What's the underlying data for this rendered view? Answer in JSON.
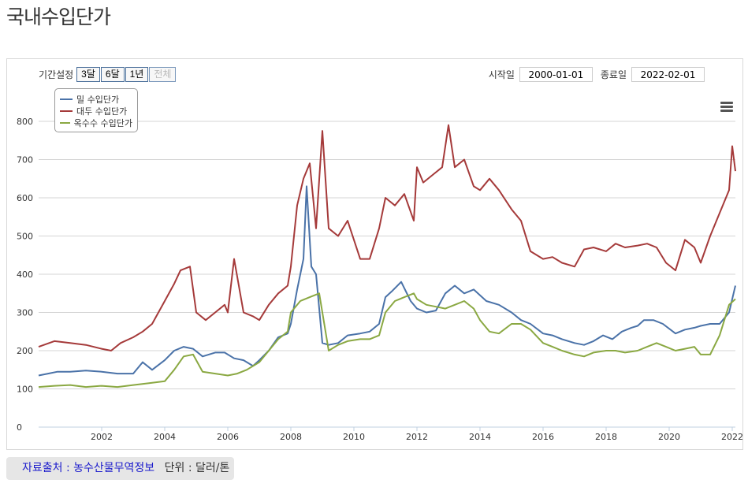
{
  "page": {
    "title": "국내수입단가"
  },
  "controls": {
    "period_label": "기간설정",
    "period_buttons": [
      "3달",
      "6달",
      "1년",
      "전체"
    ],
    "start_label": "시작일",
    "start_value": "2000-01-01",
    "end_label": "종료일",
    "end_value": "2022-02-01"
  },
  "footer": {
    "source": "자료출처 : 농수산물무역정보",
    "unit": "단위 : 달러/톤"
  },
  "chart_data": {
    "type": "line",
    "x_unit": "year",
    "xlim": [
      2000.0,
      2022.1
    ],
    "ylim": [
      0,
      800
    ],
    "y_ticks": [
      0,
      100,
      200,
      300,
      400,
      500,
      600,
      700,
      800
    ],
    "x_ticks": [
      2002,
      2004,
      2006,
      2008,
      2010,
      2012,
      2014,
      2016,
      2018,
      2020,
      2022
    ],
    "grid": true,
    "legend_position": "top-left",
    "series": [
      {
        "name": "밀 수입단가",
        "color": "#4a72a8",
        "x": [
          2000.0,
          2000.3,
          2000.6,
          2001.0,
          2001.5,
          2002.0,
          2002.5,
          2003.0,
          2003.3,
          2003.6,
          2004.0,
          2004.3,
          2004.6,
          2004.9,
          2005.2,
          2005.6,
          2005.9,
          2006.2,
          2006.5,
          2006.8,
          2007.0,
          2007.3,
          2007.6,
          2007.9,
          2008.0,
          2008.2,
          2008.4,
          2008.5,
          2008.65,
          2008.8,
          2009.0,
          2009.2,
          2009.5,
          2009.8,
          2010.2,
          2010.5,
          2010.8,
          2011.0,
          2011.2,
          2011.5,
          2011.8,
          2012.0,
          2012.3,
          2012.6,
          2012.9,
          2013.2,
          2013.5,
          2013.8,
          2014.2,
          2014.6,
          2015.0,
          2015.3,
          2015.6,
          2016.0,
          2016.3,
          2016.6,
          2017.0,
          2017.3,
          2017.6,
          2017.9,
          2018.2,
          2018.5,
          2018.8,
          2019.0,
          2019.2,
          2019.5,
          2019.8,
          2020.2,
          2020.5,
          2020.8,
          2021.0,
          2021.3,
          2021.6,
          2021.9,
          2022.1
        ],
        "y": [
          135,
          140,
          145,
          145,
          148,
          145,
          140,
          140,
          170,
          150,
          175,
          200,
          210,
          205,
          185,
          195,
          195,
          180,
          175,
          160,
          175,
          200,
          235,
          245,
          270,
          360,
          440,
          630,
          420,
          400,
          220,
          215,
          220,
          240,
          245,
          250,
          270,
          340,
          355,
          380,
          330,
          310,
          300,
          305,
          350,
          370,
          350,
          360,
          330,
          320,
          300,
          280,
          270,
          245,
          240,
          230,
          220,
          215,
          225,
          240,
          230,
          250,
          260,
          265,
          280,
          280,
          270,
          245,
          255,
          260,
          265,
          270,
          270,
          300,
          370
        ]
      },
      {
        "name": "대두 수입단가",
        "color": "#a53a3a",
        "x": [
          2000.0,
          2000.5,
          2001.0,
          2001.5,
          2002.0,
          2002.3,
          2002.6,
          2003.0,
          2003.3,
          2003.6,
          2004.0,
          2004.3,
          2004.5,
          2004.8,
          2005.0,
          2005.3,
          2005.6,
          2005.9,
          2006.0,
          2006.2,
          2006.5,
          2006.8,
          2007.0,
          2007.3,
          2007.6,
          2007.9,
          2008.0,
          2008.2,
          2008.4,
          2008.6,
          2008.8,
          2009.0,
          2009.2,
          2009.5,
          2009.8,
          2010.2,
          2010.5,
          2010.8,
          2011.0,
          2011.3,
          2011.6,
          2011.9,
          2012.0,
          2012.2,
          2012.5,
          2012.8,
          2013.0,
          2013.2,
          2013.5,
          2013.8,
          2014.0,
          2014.3,
          2014.6,
          2015.0,
          2015.3,
          2015.6,
          2016.0,
          2016.3,
          2016.6,
          2017.0,
          2017.3,
          2017.6,
          2018.0,
          2018.3,
          2018.6,
          2019.0,
          2019.3,
          2019.6,
          2019.9,
          2020.2,
          2020.5,
          2020.8,
          2021.0,
          2021.3,
          2021.6,
          2021.9,
          2022.0,
          2022.1
        ],
        "y": [
          210,
          225,
          220,
          215,
          205,
          200,
          220,
          235,
          250,
          270,
          330,
          375,
          410,
          420,
          300,
          280,
          300,
          320,
          300,
          440,
          300,
          290,
          280,
          320,
          350,
          370,
          420,
          580,
          650,
          690,
          520,
          775,
          520,
          500,
          540,
          440,
          440,
          520,
          600,
          580,
          610,
          540,
          680,
          640,
          660,
          680,
          790,
          680,
          700,
          630,
          620,
          650,
          620,
          570,
          540,
          460,
          440,
          445,
          430,
          420,
          465,
          470,
          460,
          480,
          470,
          475,
          480,
          470,
          430,
          410,
          490,
          470,
          430,
          500,
          560,
          620,
          735,
          670
        ]
      },
      {
        "name": "옥수수 수입단가",
        "color": "#8aa842",
        "x": [
          2000.0,
          2000.5,
          2001.0,
          2001.5,
          2002.0,
          2002.5,
          2003.0,
          2003.5,
          2004.0,
          2004.3,
          2004.6,
          2004.9,
          2005.2,
          2005.6,
          2006.0,
          2006.3,
          2006.6,
          2007.0,
          2007.3,
          2007.6,
          2007.9,
          2008.0,
          2008.3,
          2008.6,
          2008.9,
          2009.0,
          2009.2,
          2009.5,
          2009.8,
          2010.2,
          2010.5,
          2010.8,
          2011.0,
          2011.3,
          2011.6,
          2011.9,
          2012.0,
          2012.3,
          2012.6,
          2012.9,
          2013.2,
          2013.5,
          2013.8,
          2014.0,
          2014.3,
          2014.6,
          2015.0,
          2015.3,
          2015.6,
          2016.0,
          2016.3,
          2016.6,
          2017.0,
          2017.3,
          2017.6,
          2018.0,
          2018.3,
          2018.6,
          2019.0,
          2019.3,
          2019.6,
          2019.9,
          2020.2,
          2020.5,
          2020.8,
          2021.0,
          2021.3,
          2021.6,
          2021.9,
          2022.1
        ],
        "y": [
          105,
          108,
          110,
          105,
          108,
          105,
          110,
          115,
          120,
          150,
          185,
          190,
          145,
          140,
          135,
          140,
          150,
          170,
          200,
          230,
          250,
          300,
          330,
          340,
          350,
          300,
          200,
          215,
          225,
          230,
          230,
          240,
          300,
          330,
          340,
          350,
          335,
          320,
          315,
          310,
          320,
          330,
          310,
          280,
          250,
          245,
          270,
          270,
          255,
          220,
          210,
          200,
          190,
          185,
          195,
          200,
          200,
          195,
          200,
          210,
          220,
          210,
          200,
          205,
          210,
          190,
          190,
          240,
          320,
          335
        ]
      }
    ]
  }
}
